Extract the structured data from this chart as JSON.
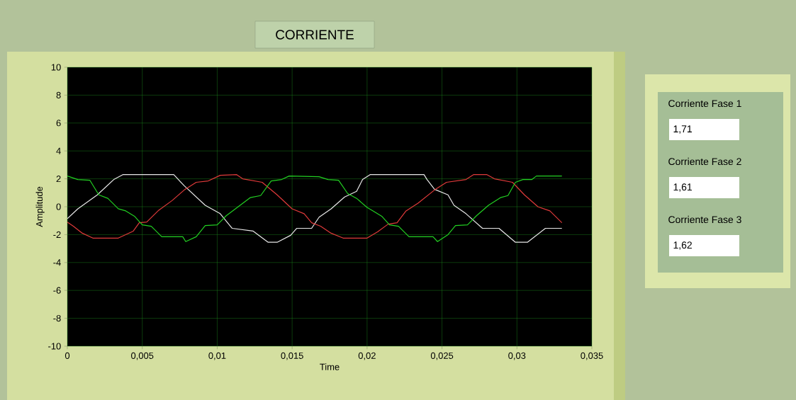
{
  "chart_data": {
    "type": "line",
    "title": "CORRIENTE",
    "xlabel": "Time",
    "ylabel": "Amplitude",
    "xlim": [
      0,
      0.035
    ],
    "ylim": [
      -10,
      10
    ],
    "xticks": [
      0,
      {
        "value": 0.005,
        "label": "0,005"
      },
      {
        "value": 0.01,
        "label": "0,01"
      },
      {
        "value": 0.015,
        "label": "0,015"
      },
      {
        "value": 0.02,
        "label": "0,02"
      },
      {
        "value": 0.025,
        "label": "0,025"
      },
      {
        "value": 0.03,
        "label": "0,03"
      },
      {
        "value": 0.035,
        "label": "0,035"
      }
    ],
    "yticks": [
      -10,
      -8,
      -6,
      -4,
      -2,
      0,
      2,
      4,
      6,
      8,
      10
    ],
    "grid": true,
    "marker": "none",
    "line_style": "solid",
    "series": [
      {
        "color": "#e8e8e8",
        "x": [
          0,
          0.0007,
          0.002,
          0.0031,
          0.0037,
          0.0071,
          0.0078,
          0.0092,
          0.0102,
          0.011,
          0.0124,
          0.0134,
          0.014,
          0.0149,
          0.0153,
          0.0163,
          0.0168,
          0.0176,
          0.0185,
          0.0193,
          0.0197,
          0.0202,
          0.0238,
          0.024,
          0.0245,
          0.0254,
          0.0258,
          0.0266,
          0.0277,
          0.0288,
          0.0299,
          0.0307,
          0.0319,
          0.033
        ],
        "values": [
          -0.85,
          -0.15,
          0.85,
          1.95,
          2.3,
          2.3,
          1.5,
          0.1,
          -0.5,
          -1.55,
          -1.75,
          -2.55,
          -2.55,
          -2.05,
          -1.55,
          -1.55,
          -0.75,
          -0.15,
          0.7,
          1.1,
          1.95,
          2.3,
          2.3,
          1.95,
          1.25,
          0.85,
          0.1,
          -0.5,
          -1.55,
          -1.55,
          -2.55,
          -2.55,
          -1.55,
          -1.55
        ]
      },
      {
        "color": "#e03a3a",
        "x": [
          0,
          0.0004,
          0.001,
          0.0017,
          0.0034,
          0.0044,
          0.0048,
          0.0053,
          0.0061,
          0.007,
          0.0078,
          0.0086,
          0.0094,
          0.0102,
          0.0113,
          0.0117,
          0.013,
          0.014,
          0.015,
          0.0158,
          0.0163,
          0.0169,
          0.0176,
          0.0184,
          0.02,
          0.0207,
          0.0214,
          0.022,
          0.0226,
          0.0234,
          0.0245,
          0.0253,
          0.0266,
          0.0271,
          0.028,
          0.0285,
          0.0297,
          0.0305,
          0.0314,
          0.0322,
          0.033
        ],
        "values": [
          -1.1,
          -1.4,
          -1.9,
          -2.25,
          -2.25,
          -1.75,
          -1.15,
          -1.1,
          -0.25,
          0.45,
          1.2,
          1.75,
          1.85,
          2.25,
          2.3,
          2.0,
          1.75,
          0.85,
          -0.15,
          -0.5,
          -1.15,
          -1.4,
          -1.9,
          -2.25,
          -2.25,
          -1.8,
          -1.25,
          -1.15,
          -0.3,
          0.25,
          1.2,
          1.75,
          1.95,
          2.3,
          2.3,
          2.0,
          1.75,
          0.85,
          0,
          -0.3,
          -1.15
        ]
      },
      {
        "color": "#22d022",
        "x": [
          0,
          0.0007,
          0.0015,
          0.0021,
          0.0027,
          0.0034,
          0.0039,
          0.0045,
          0.005,
          0.0056,
          0.0063,
          0.0077,
          0.0079,
          0.0086,
          0.0092,
          0.01,
          0.0106,
          0.0114,
          0.0122,
          0.0129,
          0.0136,
          0.0143,
          0.0148,
          0.0168,
          0.0174,
          0.0181,
          0.0187,
          0.0193,
          0.02,
          0.0204,
          0.021,
          0.0215,
          0.0221,
          0.0228,
          0.0244,
          0.0247,
          0.0254,
          0.0259,
          0.0267,
          0.0273,
          0.0281,
          0.0289,
          0.0294,
          0.0299,
          0.0304,
          0.031,
          0.0313,
          0.033
        ],
        "values": [
          2.2,
          1.95,
          1.9,
          0.85,
          0.6,
          -0.15,
          -0.3,
          -0.7,
          -1.3,
          -1.4,
          -2.15,
          -2.15,
          -2.5,
          -2.15,
          -1.35,
          -1.3,
          -0.65,
          0,
          0.65,
          0.8,
          1.85,
          1.95,
          2.2,
          2.15,
          1.95,
          1.9,
          0.95,
          0.6,
          -0.05,
          -0.3,
          -0.7,
          -1.3,
          -1.4,
          -2.15,
          -2.15,
          -2.5,
          -2.0,
          -1.35,
          -1.3,
          -0.65,
          0.1,
          0.65,
          0.8,
          1.75,
          1.95,
          1.95,
          2.2,
          2.2
        ]
      }
    ],
    "annotations": [
      "Corriente Fase 1",
      "1,71",
      "Corriente Fase 2",
      "1,61",
      "Corriente Fase 3",
      "1,62"
    ]
  }
}
